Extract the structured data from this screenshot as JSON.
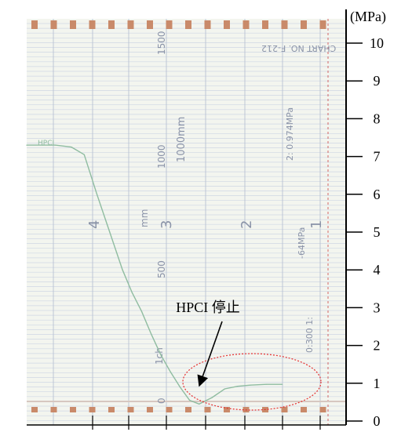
{
  "chart_data": {
    "type": "line",
    "title": "",
    "unit_label": "(MPa)",
    "ylabel": "",
    "xlabel": "",
    "ylim": [
      0,
      10
    ],
    "y_ticks": [
      "0",
      "1",
      "2",
      "3",
      "4",
      "5",
      "6",
      "7",
      "8",
      "9",
      "10"
    ],
    "y_values": [
      0,
      1,
      2,
      3,
      4,
      5,
      6,
      7,
      8,
      9,
      10
    ],
    "chart_print": {
      "chart_no": "CHART NO. F-212",
      "scale_text": "2: 0.974MPa",
      "range_text": "-64MPa",
      "ratio_text": "0:300 1:",
      "paper_speed": "1000mm",
      "speed_unit": "mm",
      "time_label": "1ch",
      "time_marks": [
        "1500",
        "1000",
        "500",
        "0"
      ],
      "division_marks": [
        "4",
        "3",
        "2",
        "1"
      ],
      "trace_label": "HPCI"
    },
    "series": [
      {
        "name": "",
        "color": "#8fbca0",
        "x": [
          0.0,
          0.05,
          0.09,
          0.14,
          0.18,
          0.22,
          0.26,
          0.3,
          0.33,
          0.36,
          0.39,
          0.42,
          0.45,
          0.48,
          0.51,
          0.54,
          0.58,
          0.62,
          0.66,
          0.7,
          0.75,
          0.8
        ],
        "y": [
          7.3,
          7.3,
          7.3,
          7.25,
          7.05,
          6.0,
          5.0,
          4.0,
          3.4,
          2.9,
          2.3,
          1.75,
          1.3,
          0.9,
          0.55,
          0.45,
          0.62,
          0.85,
          0.92,
          0.95,
          0.97,
          0.97
        ]
      }
    ],
    "annotations": [
      {
        "text": "HPCI 停止",
        "target_y": 0.55,
        "arrow": "down"
      }
    ],
    "highlight": {
      "shape": "ellipse",
      "style": "dotted",
      "color": "#e53030"
    }
  }
}
